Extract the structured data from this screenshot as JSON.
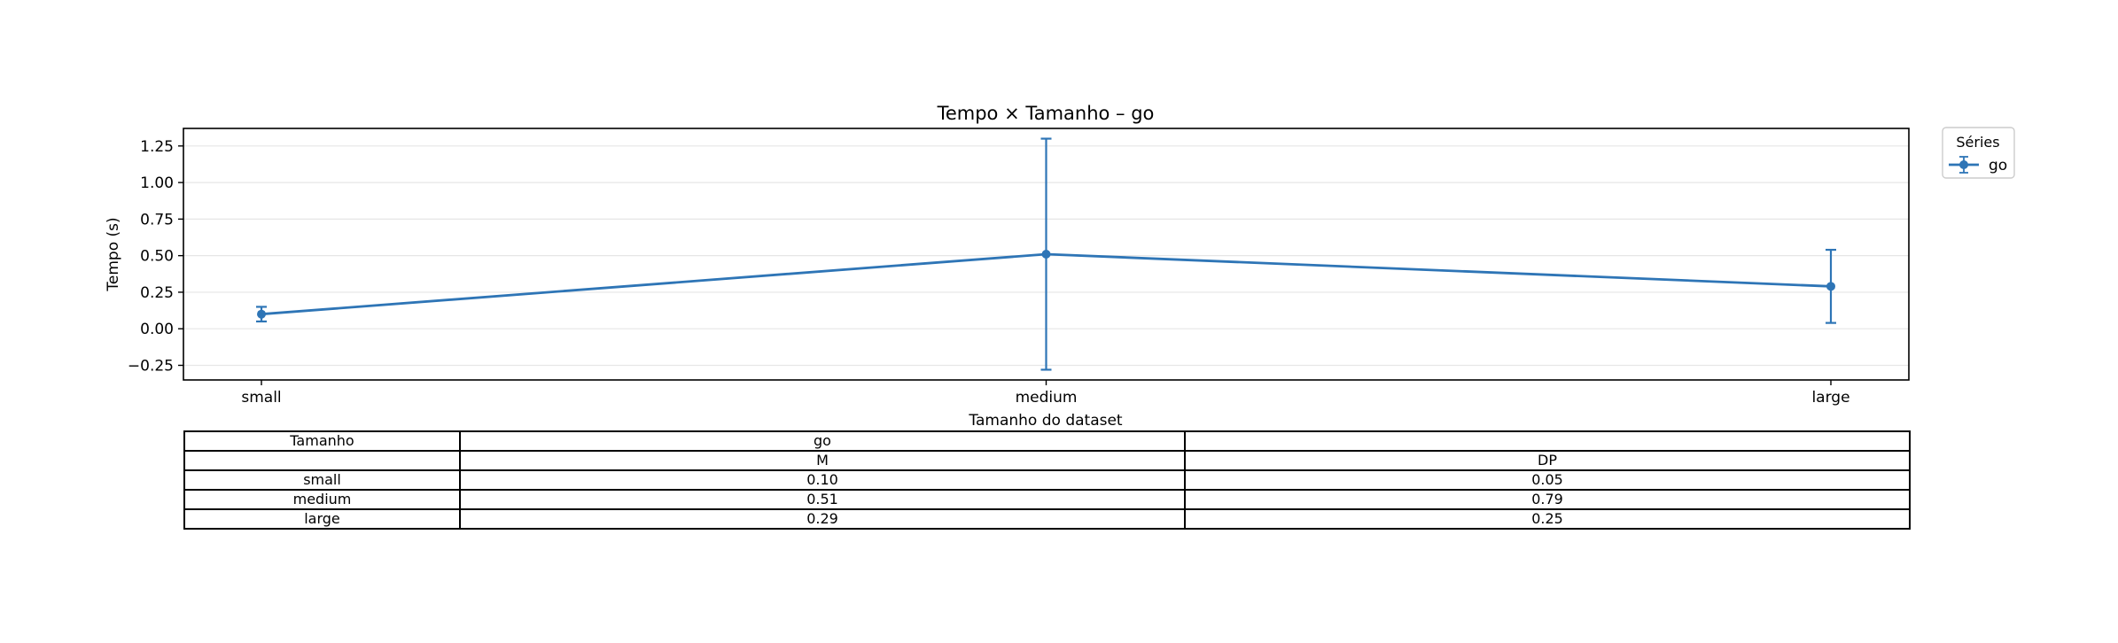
{
  "colors": {
    "series": "#2e75b6",
    "grid": "#e6e6e6",
    "axis": "#000000"
  },
  "chart_data": {
    "type": "line",
    "title": "Tempo × Tamanho – go",
    "xlabel": "Tamanho do dataset",
    "ylabel": "Tempo (s)",
    "categories": [
      "small",
      "medium",
      "large"
    ],
    "ylim": [
      -0.35,
      1.37
    ],
    "yticks": [
      -0.25,
      0.0,
      0.25,
      0.5,
      0.75,
      1.0,
      1.25
    ],
    "ytick_labels": [
      "−0.25",
      "0.00",
      "0.25",
      "0.50",
      "0.75",
      "1.00",
      "1.25"
    ],
    "grid": true,
    "legend": {
      "title": "Séries",
      "placement": "outside-top-right",
      "entries": [
        "go"
      ]
    },
    "series": [
      {
        "name": "go",
        "values": [
          0.1,
          0.51,
          0.29
        ],
        "errors": [
          0.05,
          0.79,
          0.25
        ]
      }
    ]
  },
  "table": {
    "header": [
      "Tamanho",
      "go",
      ""
    ],
    "subheader": [
      "",
      "M",
      "DP"
    ],
    "rows": [
      [
        "small",
        "0.10",
        "0.05"
      ],
      [
        "medium",
        "0.51",
        "0.79"
      ],
      [
        "large",
        "0.29",
        "0.25"
      ]
    ]
  }
}
